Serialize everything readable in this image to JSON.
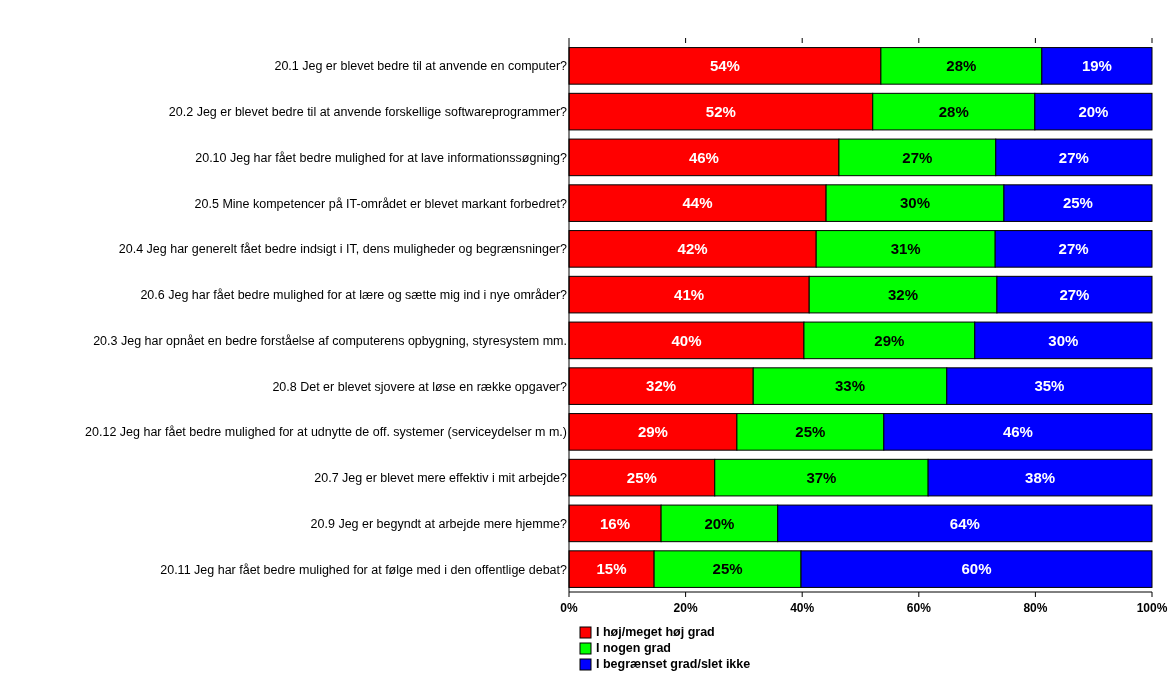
{
  "chart_data": {
    "type": "bar",
    "orientation": "horizontal",
    "stacked": true,
    "categories": [
      "20.1 Jeg er blevet bedre til at anvende en computer?",
      "20.2 Jeg er blevet bedre til at anvende forskellige softwareprogrammer?",
      "20.10 Jeg har fået bedre mulighed for at lave informationssøgning?",
      "20.5 Mine kompetencer på IT-området er blevet markant forbedret?",
      "20.4 Jeg har generelt fået bedre indsigt i IT, dens muligheder og begrænsninger?",
      "20.6 Jeg har fået bedre mulighed for at lære og sætte mig ind i nye områder?",
      "20.3 Jeg har opnået en bedre forståelse af computerens opbygning, styresystem mm.",
      "20.8 Det er blevet sjovere at løse en række opgaver?",
      "20.12 Jeg har fået bedre mulighed for at udnytte de off. systemer (serviceydelser m m.)",
      "20.7 Jeg er blevet mere effektiv i mit arbejde?",
      "20.9 Jeg er begyndt at arbejde mere hjemme?",
      "20.11 Jeg har fået bedre mulighed for at følge med i den offentlige debat?"
    ],
    "series": [
      {
        "name": "I høj/meget høj grad",
        "color": "#ff0000",
        "values": [
          53.5,
          52.1,
          46.3,
          44.1,
          42.4,
          41.2,
          40.3,
          31.6,
          28.8,
          25.0,
          15.8,
          14.6
        ],
        "value_labels": [
          "54%",
          "52%",
          "46%",
          "44%",
          "42%",
          "41%",
          "40%",
          "32%",
          "29%",
          "25%",
          "16%",
          "15%"
        ]
      },
      {
        "name": "I nogen grad",
        "color": "#00ff00",
        "values": [
          27.6,
          27.8,
          26.9,
          30.5,
          30.7,
          32.2,
          29.3,
          33.2,
          25.2,
          36.6,
          20.0,
          25.2
        ],
        "value_labels": [
          "28%",
          "28%",
          "27%",
          "30%",
          "31%",
          "32%",
          "29%",
          "33%",
          "25%",
          "37%",
          "20%",
          "25%"
        ]
      },
      {
        "name": "I begrænset grad/slet ikke",
        "color": "#0000ff",
        "values": [
          18.9,
          20.1,
          26.8,
          25.4,
          26.9,
          26.6,
          30.4,
          35.2,
          46.0,
          38.4,
          64.2,
          60.2
        ],
        "value_labels": [
          "19%",
          "20%",
          "27%",
          "25%",
          "27%",
          "27%",
          "30%",
          "35%",
          "46%",
          "38%",
          "64%",
          "60%"
        ]
      }
    ],
    "xlim": [
      0,
      100
    ],
    "xticks": [
      {
        "value": 0,
        "label": "0%"
      },
      {
        "value": 20,
        "label": "20%"
      },
      {
        "value": 40,
        "label": "40%"
      },
      {
        "value": 60,
        "label": "60%"
      },
      {
        "value": 80,
        "label": "80%"
      },
      {
        "value": 100,
        "label": "100%"
      }
    ],
    "grid": false,
    "legend": "bottom"
  }
}
